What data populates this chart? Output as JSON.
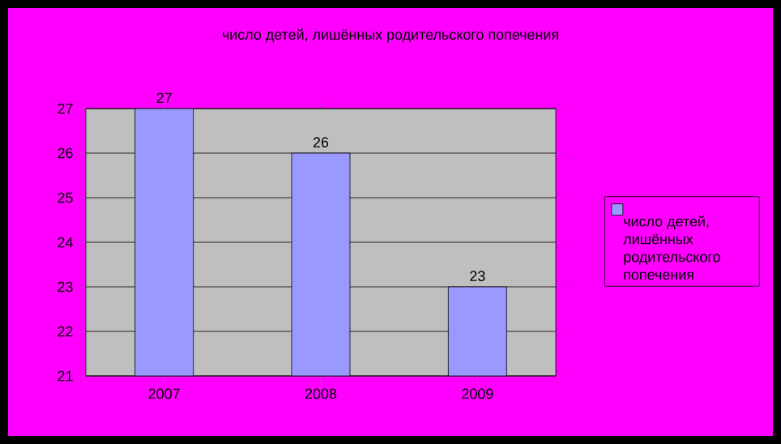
{
  "chart_data": {
    "type": "bar",
    "title": "число детей, лишённых родительского попечения",
    "categories": [
      "2007",
      "2008",
      "2009"
    ],
    "series": [
      {
        "name": "число детей, лишённых родительского попечения",
        "color": "#9999ff",
        "values": [
          27,
          26,
          23
        ]
      }
    ],
    "ylim": [
      21,
      27
    ],
    "yticks": [
      21,
      22,
      23,
      24,
      25,
      26,
      27
    ],
    "grid": "y",
    "legend": "right",
    "data_labels": true
  }
}
